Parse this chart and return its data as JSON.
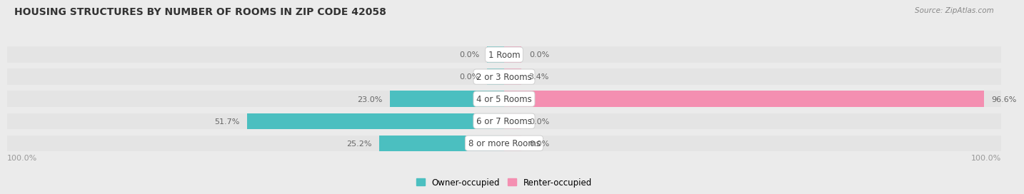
{
  "title": "HOUSING STRUCTURES BY NUMBER OF ROOMS IN ZIP CODE 42058",
  "source": "Source: ZipAtlas.com",
  "categories": [
    "1 Room",
    "2 or 3 Rooms",
    "4 or 5 Rooms",
    "6 or 7 Rooms",
    "8 or more Rooms"
  ],
  "owner_values": [
    0.0,
    0.0,
    23.0,
    51.7,
    25.2
  ],
  "renter_values": [
    0.0,
    3.4,
    96.6,
    0.0,
    0.0
  ],
  "owner_color": "#4BBFC0",
  "renter_color": "#F48FB1",
  "bg_color": "#ebebeb",
  "bar_bg_color": "#e0e0e0",
  "row_bg_color": "#e4e4e4",
  "label_color": "#666666",
  "title_color": "#333333",
  "source_color": "#888888",
  "axis_label_color": "#999999",
  "max_val": 100.0,
  "stub_size": 3.5
}
